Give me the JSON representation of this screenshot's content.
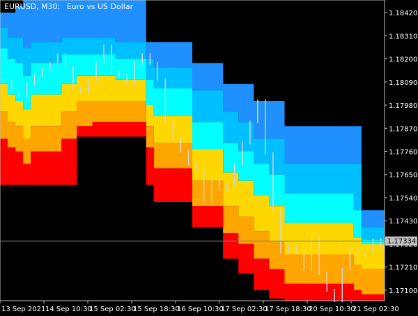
{
  "window": {
    "symbol_label": "EURUSD, M30:",
    "description": "Euro vs US Dollar",
    "current_price_label": "1.17334"
  },
  "colors": {
    "background": "#000000",
    "text": "#ffffff",
    "band_colors": [
      "#1e90ff",
      "#00bfff",
      "#00ffff",
      "#ffd700",
      "#ffa500",
      "#ff0000"
    ],
    "candle": "#d3d3d3",
    "last_price_line": "#808080",
    "price_tag": "#c0c0c0"
  },
  "chart_data": {
    "type": "area",
    "title": "EURUSD, M30:  Euro vs US Dollar",
    "ylim": [
      1.1705,
      1.1848
    ],
    "y_ticks": [
      "1.18420",
      "1.18310",
      "1.18200",
      "1.18090",
      "1.17980",
      "1.17870",
      "1.17760",
      "1.17650",
      "1.17540",
      "1.17430",
      "1.17320",
      "1.17210",
      "1.17100"
    ],
    "x_labels": [
      "13 Sep 2021",
      "14 Sep 10:30",
      "15 Sep 02:30",
      "15 Sep 18:30",
      "16 Sep 10:30",
      "17 Sep 02:30",
      "17 Sep 18:30",
      "20 Sep 10:30",
      "21 Sep 02:30"
    ],
    "bands": [
      {
        "color": "#1e90ff",
        "upper": [
          1.1842,
          1.1842,
          1.1845,
          1.1848,
          1.1848,
          1.1848,
          1.1848,
          1.1848,
          1.1848,
          1.1848,
          1.1848,
          1.1848,
          1.1848,
          1.1848,
          1.1848,
          1.1848,
          1.1848,
          1.1848,
          1.1848,
          1.1828,
          1.1828,
          1.1828,
          1.1828,
          1.1828,
          1.1828,
          1.1818,
          1.1818,
          1.1818,
          1.1818,
          1.1808,
          1.1808,
          1.1808,
          1.1808,
          1.18,
          1.18,
          1.18,
          1.18,
          1.1788,
          1.1788,
          1.1788,
          1.1788,
          1.1788,
          1.1788,
          1.1788,
          1.1788,
          1.1788,
          1.1788,
          1.1748,
          1.1748,
          1.1748
        ]
      },
      {
        "color": "#00bfff",
        "upper": [
          1.1835,
          1.183,
          1.183,
          1.1825,
          1.1828,
          1.1828,
          1.1828,
          1.1828,
          1.183,
          1.183,
          1.183,
          1.183,
          1.183,
          1.183,
          1.183,
          1.1828,
          1.1828,
          1.1828,
          1.1828,
          1.182,
          1.1816,
          1.1816,
          1.1816,
          1.1816,
          1.1816,
          1.1805,
          1.1805,
          1.1805,
          1.1805,
          1.1795,
          1.1795,
          1.179,
          1.179,
          1.1782,
          1.1782,
          1.1782,
          1.1782,
          1.177,
          1.177,
          1.177,
          1.177,
          1.177,
          1.177,
          1.177,
          1.177,
          1.177,
          1.177,
          1.174,
          1.174,
          1.174
        ]
      },
      {
        "color": "#00ffff",
        "upper": [
          1.1825,
          1.182,
          1.1818,
          1.1812,
          1.1818,
          1.1818,
          1.1818,
          1.1818,
          1.1822,
          1.1822,
          1.1822,
          1.1822,
          1.1822,
          1.1822,
          1.1822,
          1.182,
          1.182,
          1.182,
          1.182,
          1.181,
          1.1806,
          1.1806,
          1.1806,
          1.1806,
          1.1806,
          1.179,
          1.179,
          1.179,
          1.179,
          1.178,
          1.178,
          1.1776,
          1.1776,
          1.177,
          1.177,
          1.1765,
          1.1765,
          1.1756,
          1.1756,
          1.1756,
          1.1756,
          1.1756,
          1.1756,
          1.1756,
          1.1756,
          1.1756,
          1.1748,
          1.1734,
          1.1734,
          1.1734
        ]
      },
      {
        "color": "#ffd700",
        "upper": [
          1.1808,
          1.1803,
          1.18,
          1.1796,
          1.1803,
          1.1803,
          1.1803,
          1.1803,
          1.1808,
          1.1808,
          1.1812,
          1.1812,
          1.1812,
          1.1812,
          1.1812,
          1.181,
          1.181,
          1.181,
          1.181,
          1.1798,
          1.1793,
          1.1793,
          1.1793,
          1.1793,
          1.1793,
          1.1777,
          1.1777,
          1.1777,
          1.1777,
          1.1766,
          1.1766,
          1.1762,
          1.1762,
          1.1755,
          1.1755,
          1.175,
          1.175,
          1.1742,
          1.1742,
          1.1742,
          1.1742,
          1.1742,
          1.1742,
          1.1742,
          1.1742,
          1.1742,
          1.1735,
          1.1732,
          1.1732,
          1.1732
        ]
      },
      {
        "color": "#ffa500",
        "upper": [
          1.1795,
          1.179,
          1.1788,
          1.1782,
          1.1788,
          1.1788,
          1.1788,
          1.1788,
          1.1795,
          1.1795,
          1.18,
          1.18,
          1.18,
          1.18,
          1.18,
          1.18,
          1.18,
          1.18,
          1.18,
          1.1788,
          1.178,
          1.178,
          1.178,
          1.178,
          1.178,
          1.1762,
          1.1762,
          1.1762,
          1.1762,
          1.175,
          1.175,
          1.1745,
          1.1745,
          1.1738,
          1.1738,
          1.1733,
          1.1733,
          1.1727,
          1.1727,
          1.1727,
          1.1727,
          1.1727,
          1.1727,
          1.1727,
          1.1727,
          1.1727,
          1.1722,
          1.172,
          1.172,
          1.172
        ]
      },
      {
        "color": "#ff0000",
        "upper": [
          1.1782,
          1.1778,
          1.1776,
          1.177,
          1.1776,
          1.1776,
          1.1776,
          1.1776,
          1.1782,
          1.1782,
          1.1788,
          1.1788,
          1.179,
          1.179,
          1.179,
          1.179,
          1.179,
          1.179,
          1.179,
          1.1778,
          1.1768,
          1.1768,
          1.1768,
          1.1768,
          1.1768,
          1.175,
          1.175,
          1.175,
          1.175,
          1.1737,
          1.1737,
          1.1732,
          1.1732,
          1.1725,
          1.1725,
          1.172,
          1.172,
          1.1713,
          1.1713,
          1.1713,
          1.1713,
          1.1713,
          1.1713,
          1.1713,
          1.1713,
          1.1713,
          1.171,
          1.1708,
          1.1708,
          1.1708
        ]
      }
    ],
    "band_bottom": [
      1.176,
      1.176,
      1.176,
      1.176,
      1.176,
      1.176,
      1.176,
      1.176,
      1.176,
      1.176,
      1.1783,
      1.1783,
      1.1783,
      1.1783,
      1.1783,
      1.1783,
      1.1783,
      1.1783,
      1.1783,
      1.176,
      1.1752,
      1.1752,
      1.1752,
      1.1752,
      1.1752,
      1.174,
      1.174,
      1.174,
      1.174,
      1.1725,
      1.1725,
      1.1718,
      1.1718,
      1.171,
      1.171,
      1.1706,
      1.1706,
      1.17,
      1.17,
      1.17,
      1.17,
      1.17,
      1.17,
      1.17,
      1.17,
      1.17,
      1.17,
      1.17,
      1.17,
      1.17
    ],
    "close": [
      1.181,
      1.1805,
      1.1802,
      1.1808,
      1.1812,
      1.1815,
      1.1818,
      1.1822,
      1.1816,
      1.1806,
      1.1804,
      1.181,
      1.1818,
      1.1826,
      1.1814,
      1.1812,
      1.1808,
      1.1818,
      1.1822,
      1.1818,
      1.181,
      1.179,
      1.1782,
      1.1776,
      1.177,
      1.1768,
      1.1752,
      1.1762,
      1.1758,
      1.176,
      1.177,
      1.178,
      1.179,
      1.18,
      1.1775,
      1.1748,
      1.1728,
      1.1731,
      1.1728,
      1.172,
      1.1735,
      1.1718,
      1.171,
      1.1705,
      1.172,
      1.173,
      1.1726,
      1.1728,
      1.1734,
      1.1731
    ],
    "last_price": 1.17334
  }
}
